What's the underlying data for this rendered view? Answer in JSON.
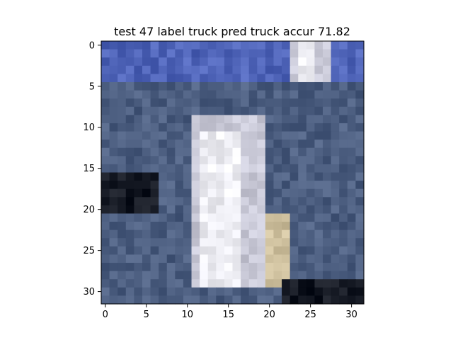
{
  "chart_data": {
    "type": "heatmap",
    "title": "test 47 label truck pred truck accur 71.82",
    "xlabel": "",
    "ylabel": "",
    "image_size": [
      32,
      32
    ],
    "xlim": [
      -0.5,
      31.5
    ],
    "ylim": [
      31.5,
      -0.5
    ],
    "x_ticks": [
      0,
      5,
      10,
      15,
      20,
      25,
      30
    ],
    "y_ticks": [
      0,
      5,
      10,
      15,
      20,
      25,
      30
    ],
    "x_tick_labels": [
      "0",
      "5",
      "10",
      "15",
      "20",
      "25",
      "30"
    ],
    "y_tick_labels": [
      "0",
      "5",
      "10",
      "15",
      "20",
      "25",
      "30"
    ],
    "grid": false,
    "legend": "none",
    "colors": {
      "sky": "#4f64b8",
      "silver": "#c8c8d6",
      "highlight": "#eeeef4",
      "dark": "#141822",
      "beige": "#cdbf9d",
      "slate": "#4c5e80"
    }
  }
}
